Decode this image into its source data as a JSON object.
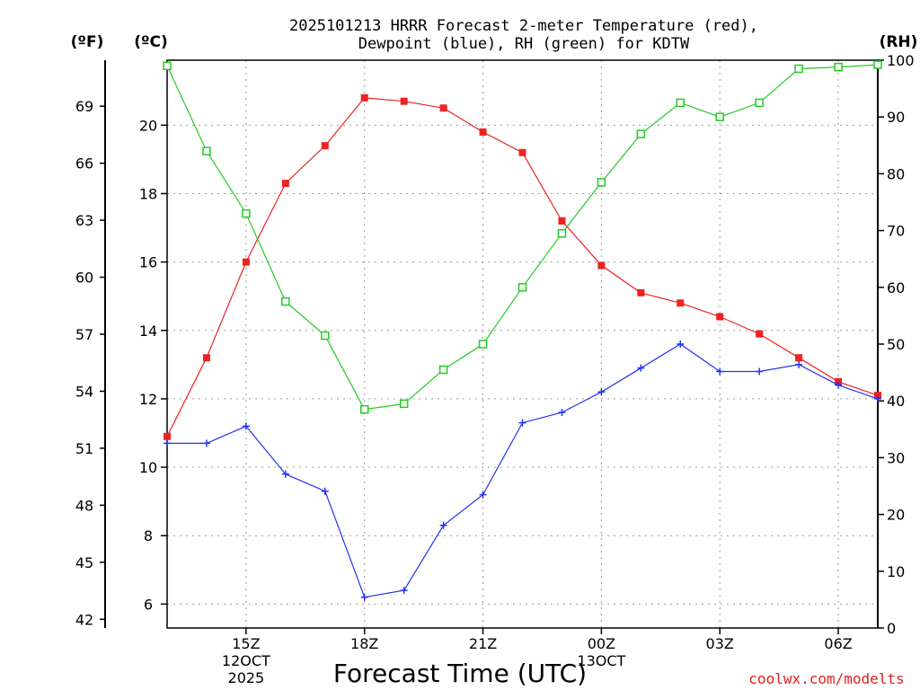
{
  "chart_data": {
    "type": "line",
    "title_line1": "2025101213 HRRR Forecast 2-meter Temperature (red),",
    "title_line2": "Dewpoint (blue), RH (green) for KDTW",
    "unit_f": "(ºF)",
    "unit_c": "(ºC)",
    "unit_rh": "(RH)",
    "xlabel": "Forecast Time (UTC)",
    "credit": "coolwx.com/modelts",
    "x_range": [
      13,
      31
    ],
    "x_ticks": [
      {
        "x": 15,
        "label": "15Z",
        "sub1": "12OCT",
        "sub2": "2025"
      },
      {
        "x": 18,
        "label": "18Z",
        "sub1": "",
        "sub2": ""
      },
      {
        "x": 21,
        "label": "21Z",
        "sub1": "",
        "sub2": ""
      },
      {
        "x": 24,
        "label": "00Z",
        "sub1": "13OCT",
        "sub2": ""
      },
      {
        "x": 27,
        "label": "03Z",
        "sub1": "",
        "sub2": ""
      },
      {
        "x": 30,
        "label": "06Z",
        "sub1": "",
        "sub2": ""
      }
    ],
    "celsius_axis": {
      "range": [
        5.3,
        21.9
      ],
      "ticks": [
        6,
        8,
        10,
        12,
        14,
        16,
        18,
        20
      ]
    },
    "fahrenheit_ticks": [
      42,
      45,
      48,
      51,
      54,
      57,
      60,
      63,
      66,
      69
    ],
    "rh_axis": {
      "range": [
        0,
        100
      ],
      "ticks": [
        0,
        10,
        20,
        30,
        40,
        50,
        60,
        70,
        80,
        90,
        100
      ]
    },
    "x": [
      13,
      14,
      15,
      16,
      17,
      18,
      19,
      20,
      21,
      22,
      23,
      24,
      25,
      26,
      27,
      28,
      29,
      30,
      31
    ],
    "series": [
      {
        "name": "Temperature",
        "color": "#ee2222",
        "axis": "celsius",
        "marker": "filled-square",
        "values": [
          10.9,
          13.2,
          16.0,
          18.3,
          19.4,
          20.8,
          20.7,
          20.5,
          19.8,
          19.2,
          17.2,
          15.9,
          15.1,
          14.8,
          14.4,
          13.9,
          13.2,
          12.5,
          12.1
        ]
      },
      {
        "name": "Dewpoint",
        "color": "#2233ee",
        "axis": "celsius",
        "marker": "plus",
        "values": [
          10.7,
          10.7,
          11.2,
          9.8,
          9.3,
          6.2,
          6.4,
          8.3,
          9.2,
          11.3,
          11.6,
          12.2,
          12.9,
          13.6,
          12.8,
          12.8,
          13.0,
          12.4,
          12.0
        ]
      },
      {
        "name": "RH",
        "color": "#22cc22",
        "axis": "rh",
        "marker": "open-square",
        "values": [
          99,
          84,
          73,
          57.5,
          51.5,
          38.5,
          39.5,
          45.5,
          50,
          60,
          69.5,
          78.5,
          87,
          92.5,
          90,
          92.5,
          98.5,
          98.8,
          99.2
        ]
      }
    ]
  }
}
